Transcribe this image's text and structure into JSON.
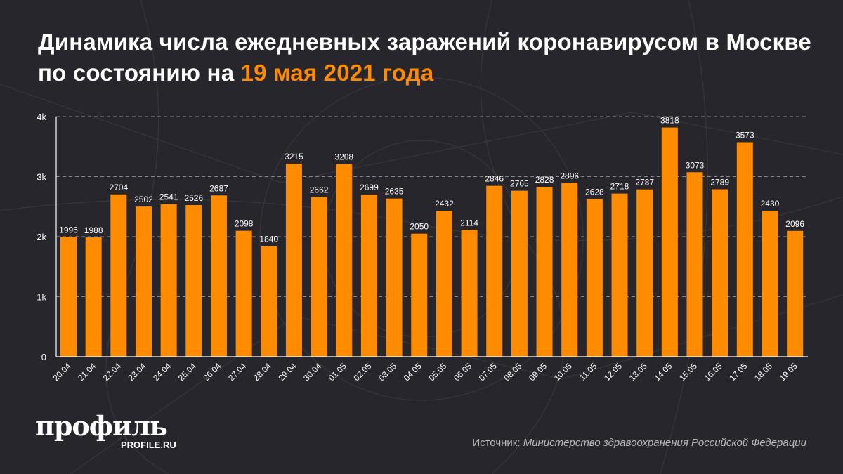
{
  "header": {
    "title_main": "Динамика числа ежедневных заражений коронавирусом в Москве по состоянию на",
    "title_highlight": "19 мая 2021 года"
  },
  "colors": {
    "background": "#26262c",
    "bar": "#ff8c00",
    "highlight": "#ff8c00",
    "text": "#ffffff"
  },
  "chart_data": {
    "type": "bar",
    "categories": [
      "20.04",
      "21.04",
      "22.04",
      "23.04",
      "24.04",
      "25.04",
      "26.04",
      "27.04",
      "28.04",
      "29.04",
      "30.04",
      "01.05",
      "02.05",
      "03.05",
      "04.05",
      "05.05",
      "06.05",
      "07.05",
      "08.05",
      "09.05",
      "10.05",
      "11.05",
      "12.05",
      "13.05",
      "14.05",
      "15.05",
      "16.05",
      "17.05",
      "18.05",
      "19.05"
    ],
    "values": [
      1996,
      1988,
      2704,
      2502,
      2541,
      2526,
      2687,
      2098,
      1840,
      3215,
      2662,
      3208,
      2699,
      2635,
      2050,
      2432,
      2114,
      2846,
      2765,
      2828,
      2896,
      2628,
      2718,
      2787,
      3818,
      3073,
      2789,
      3573,
      2430,
      2096
    ],
    "ylim": [
      0,
      4000
    ],
    "yticks": [
      0,
      1000,
      2000,
      3000,
      4000
    ],
    "ytick_labels": [
      "0",
      "1k",
      "2k",
      "3k",
      "4k"
    ],
    "grid": "horizontal dashed",
    "data_labels": true
  },
  "footer": {
    "logo": "профиль",
    "logo_sub": "PROFILE.RU",
    "source_label": "Источник:",
    "source_text": "Министерство здравоохранения Российской Федерации"
  }
}
